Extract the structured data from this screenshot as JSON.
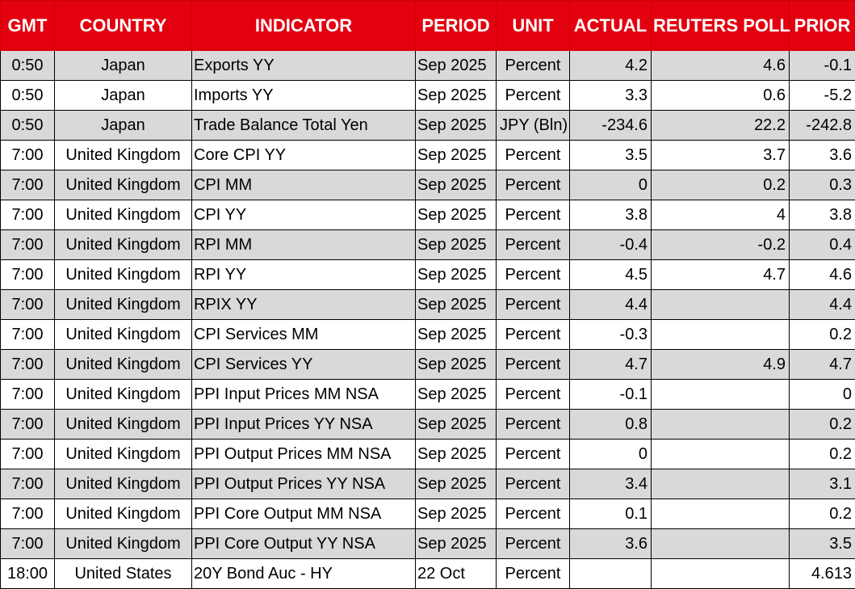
{
  "table": {
    "header": [
      "GMT",
      "COUNTRY",
      "INDICATOR",
      "PERIOD",
      "UNIT",
      "ACTUAL",
      "REUTERS POLL",
      "PRIOR"
    ],
    "rows": [
      [
        "0:50",
        "Japan",
        "Exports YY",
        "Sep 2025",
        "Percent",
        "4.2",
        "4.6",
        "-0.1"
      ],
      [
        "0:50",
        "Japan",
        "Imports YY",
        "Sep 2025",
        "Percent",
        "3.3",
        "0.6",
        "-5.2"
      ],
      [
        "0:50",
        "Japan",
        "Trade Balance Total Yen",
        "Sep 2025",
        "JPY (Bln)",
        "-234.6",
        "22.2",
        "-242.8"
      ],
      [
        "7:00",
        "United Kingdom",
        "Core CPI YY",
        "Sep 2025",
        "Percent",
        "3.5",
        "3.7",
        "3.6"
      ],
      [
        "7:00",
        "United Kingdom",
        "CPI MM",
        "Sep 2025",
        "Percent",
        "0",
        "0.2",
        "0.3"
      ],
      [
        "7:00",
        "United Kingdom",
        "CPI YY",
        "Sep 2025",
        "Percent",
        "3.8",
        "4",
        "3.8"
      ],
      [
        "7:00",
        "United Kingdom",
        "RPI MM",
        "Sep 2025",
        "Percent",
        "-0.4",
        "-0.2",
        "0.4"
      ],
      [
        "7:00",
        "United Kingdom",
        "RPI YY",
        "Sep 2025",
        "Percent",
        "4.5",
        "4.7",
        "4.6"
      ],
      [
        "7:00",
        "United Kingdom",
        "RPIX YY",
        "Sep 2025",
        "Percent",
        "4.4",
        null,
        "4.4"
      ],
      [
        "7:00",
        "United Kingdom",
        "CPI Services MM",
        "Sep 2025",
        "Percent",
        "-0.3",
        null,
        "0.2"
      ],
      [
        "7:00",
        "United Kingdom",
        "CPI Services YY",
        "Sep 2025",
        "Percent",
        "4.7",
        "4.9",
        "4.7"
      ],
      [
        "7:00",
        "United Kingdom",
        "PPI Input Prices MM NSA",
        "Sep 2025",
        "Percent",
        "-0.1",
        null,
        "0"
      ],
      [
        "7:00",
        "United Kingdom",
        "PPI Input Prices YY NSA",
        "Sep 2025",
        "Percent",
        "0.8",
        null,
        "0.2"
      ],
      [
        "7:00",
        "United Kingdom",
        "PPI Output Prices MM NSA",
        "Sep 2025",
        "Percent",
        "0",
        null,
        "0.2"
      ],
      [
        "7:00",
        "United Kingdom",
        "PPI Output Prices YY NSA",
        "Sep 2025",
        "Percent",
        "3.4",
        null,
        "3.1"
      ],
      [
        "7:00",
        "United Kingdom",
        "PPI Core Output MM NSA",
        "Sep 2025",
        "Percent",
        "0.1",
        null,
        "0.2"
      ],
      [
        "7:00",
        "United Kingdom",
        "PPI Core Output YY NSA",
        "Sep 2025",
        "Percent",
        "3.6",
        null,
        "3.5"
      ],
      [
        "18:00",
        "United States",
        "20Y Bond Auc - HY",
        "22 Oct",
        "Percent",
        null,
        null,
        "4.613"
      ]
    ]
  }
}
